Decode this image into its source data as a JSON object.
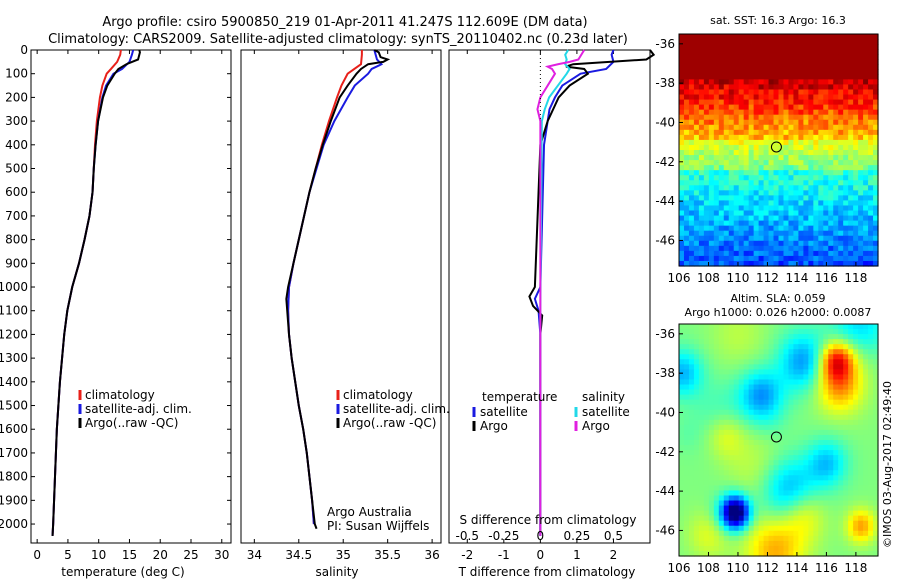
{
  "title": {
    "line1": "Argo profile: csiro 5900850_219 01-Apr-2011 41.247S 112.609E (DM data)",
    "line2": "Climatology: CARS2009. Satellite-adjusted climatology: synTS_20110402.nc (0.23d later)"
  },
  "stamp": "©IMOS 03-Aug-2017 02:49:40",
  "colors": {
    "climatology": "#e8201a",
    "satellite": "#1a1ae0",
    "argo": "#000000",
    "sat_salinity": "#22d8e8",
    "argo_salinity": "#e020e0"
  },
  "chart_data": [
    {
      "type": "line",
      "panel": "temperature",
      "xlabel": "temperature (deg C)",
      "ylabel": "",
      "xlim": [
        -1,
        31.5
      ],
      "ylim": [
        2080,
        0
      ],
      "xticks": [
        0,
        5,
        10,
        15,
        20,
        25,
        30
      ],
      "yticks": [
        0,
        100,
        200,
        300,
        400,
        500,
        600,
        700,
        800,
        900,
        1000,
        1100,
        1200,
        1300,
        1400,
        1500,
        1600,
        1700,
        1800,
        1900,
        2000
      ],
      "legend": [
        "climatology",
        "satellite-adj. clim.",
        "Argo(..raw -QC)"
      ],
      "legend_position": "lower-left",
      "series": [
        {
          "name": "climatology",
          "color_key": "climatology",
          "depth": [
            0,
            20,
            50,
            80,
            100,
            150,
            200,
            300,
            400,
            500,
            600,
            700,
            800,
            900,
            1000,
            1100,
            1200,
            1400,
            1600,
            1800,
            2000,
            2050
          ],
          "values": [
            13.6,
            13.5,
            13.0,
            12.0,
            11.3,
            10.6,
            10.2,
            9.7,
            9.4,
            9.2,
            9.0,
            8.5,
            7.7,
            6.8,
            5.7,
            4.9,
            4.4,
            3.7,
            3.2,
            2.9,
            2.6,
            2.5
          ]
        },
        {
          "name": "satellite-adj. clim.",
          "color_key": "satellite",
          "depth": [
            0,
            20,
            50,
            80,
            100,
            150,
            200,
            300,
            400,
            500,
            600,
            700,
            800,
            900,
            1000,
            1100,
            1200,
            1400,
            1600,
            1800,
            2000,
            2050
          ],
          "values": [
            15.6,
            15.4,
            15.0,
            13.8,
            12.4,
            11.2,
            10.6,
            9.9,
            9.5,
            9.2,
            9.0,
            8.5,
            7.7,
            6.8,
            5.7,
            4.9,
            4.4,
            3.7,
            3.2,
            2.9,
            2.6,
            2.5
          ]
        },
        {
          "name": "Argo(..raw -QC)",
          "color_key": "argo",
          "depth": [
            0,
            10,
            20,
            40,
            60,
            80,
            100,
            150,
            200,
            300,
            400,
            500,
            600,
            700,
            800,
            900,
            1000,
            1100,
            1200,
            1400,
            1600,
            1800,
            2000,
            2050
          ],
          "values": [
            16.6,
            16.7,
            16.6,
            16.4,
            14.5,
            13.2,
            12.6,
            11.4,
            10.7,
            9.9,
            9.5,
            9.2,
            9.0,
            8.5,
            7.7,
            6.8,
            5.7,
            4.9,
            4.4,
            3.7,
            3.2,
            2.9,
            2.6,
            2.5
          ]
        }
      ]
    },
    {
      "type": "line",
      "panel": "salinity",
      "xlabel": "salinity",
      "xlim": [
        33.85,
        36.1
      ],
      "ylim": [
        2080,
        0
      ],
      "xticks": [
        34,
        34.5,
        35,
        35.5,
        36
      ],
      "legend": [
        "climatology",
        "satellite-adj. clim.",
        "Argo(..raw -QC)"
      ],
      "legend_position": "lower-right",
      "annotation": [
        "Argo Australia",
        "PI: Susan Wijffels"
      ],
      "series": [
        {
          "name": "climatology",
          "color_key": "climatology",
          "depth": [
            0,
            20,
            60,
            100,
            150,
            200,
            300,
            400,
            500,
            600,
            700,
            800,
            900,
            1000,
            1100,
            1200,
            1300,
            1400,
            1500,
            1600,
            1700,
            1800,
            1900,
            2000
          ],
          "values": [
            35.21,
            35.21,
            35.2,
            35.05,
            34.98,
            34.93,
            34.84,
            34.76,
            34.69,
            34.62,
            34.56,
            34.5,
            34.44,
            34.39,
            34.38,
            34.39,
            34.42,
            34.46,
            34.5,
            34.55,
            34.59,
            34.62,
            34.65,
            34.67
          ]
        },
        {
          "name": "satellite-adj. clim.",
          "color_key": "satellite",
          "depth": [
            0,
            40,
            60,
            80,
            100,
            150,
            200,
            300,
            400,
            500,
            600,
            700,
            800,
            900,
            1000,
            1100,
            1200,
            1300,
            1400,
            1500,
            1600,
            1700,
            1800,
            1900,
            2000
          ],
          "values": [
            35.35,
            35.38,
            35.43,
            35.32,
            35.28,
            35.13,
            35.05,
            34.9,
            34.78,
            34.7,
            34.62,
            34.56,
            34.5,
            34.44,
            34.39,
            34.38,
            34.39,
            34.42,
            34.46,
            34.5,
            34.55,
            34.59,
            34.62,
            34.65,
            34.67
          ]
        },
        {
          "name": "Argo(..raw -QC)",
          "color_key": "argo",
          "depth": [
            0,
            10,
            30,
            40,
            50,
            60,
            80,
            100,
            150,
            200,
            300,
            400,
            500,
            600,
            700,
            800,
            900,
            1000,
            1050,
            1100,
            1200,
            1300,
            1400,
            1500,
            1600,
            1700,
            1800,
            1900,
            2000,
            2020
          ],
          "values": [
            35.35,
            35.4,
            35.42,
            35.5,
            35.45,
            35.28,
            35.2,
            35.15,
            35.05,
            34.96,
            34.86,
            34.77,
            34.69,
            34.62,
            34.56,
            34.5,
            34.44,
            34.38,
            34.36,
            34.37,
            34.39,
            34.42,
            34.46,
            34.5,
            34.55,
            34.59,
            34.62,
            34.65,
            34.68,
            34.7
          ]
        }
      ]
    },
    {
      "type": "line",
      "panel": "difference",
      "xlabel": "T difference from climatology",
      "xlabel_top": "S difference from climatology",
      "xlim": [
        -2.5,
        3.0
      ],
      "ylim": [
        2080,
        0
      ],
      "xticks": [
        -2,
        -1,
        0,
        1,
        2
      ],
      "xticks_top_values": [
        -0.5,
        -0.25,
        0,
        0.25,
        0.5
      ],
      "xticks_top_labels": [
        "-0.5",
        "-0.25",
        "0",
        "0.25",
        "0.5"
      ],
      "legend_temperature": {
        "title": "temperature",
        "items": [
          "satellite",
          "Argo"
        ]
      },
      "legend_salinity": {
        "title": "salinity",
        "items": [
          "satellite",
          "Argo"
        ]
      },
      "series": [
        {
          "name": "satellite",
          "group": "temperature",
          "color_key": "satellite",
          "depth": [
            0,
            20,
            50,
            80,
            100,
            150,
            200,
            250,
            300,
            400,
            1000,
            1050,
            1100,
            1200,
            1300,
            2050
          ],
          "values": [
            2.0,
            1.95,
            2.0,
            1.8,
            1.1,
            0.6,
            0.4,
            0.25,
            0.2,
            0.1,
            0.0,
            -0.15,
            -0.05,
            0.0,
            0.0,
            0.0
          ]
        },
        {
          "name": "Argo",
          "group": "temperature",
          "color_key": "argo",
          "depth": [
            0,
            20,
            40,
            60,
            70,
            80,
            100,
            150,
            200,
            300,
            400,
            1000,
            1040,
            1080,
            1120,
            1200,
            1400,
            1600,
            1800,
            2050
          ],
          "values": [
            3.0,
            3.1,
            2.9,
            0.9,
            0.7,
            1.2,
            1.3,
            0.8,
            0.5,
            0.2,
            0.0,
            -0.15,
            -0.3,
            -0.2,
            0.05,
            0.0,
            0.0,
            0.0,
            0.0,
            0.0
          ]
        },
        {
          "name": "satellite",
          "group": "salinity",
          "color_key": "sat_salinity",
          "depth": [
            0,
            20,
            40,
            60,
            80,
            100,
            150,
            200,
            250,
            300,
            1100,
            2050
          ],
          "values": [
            0.19,
            0.17,
            0.18,
            0.17,
            0.2,
            0.18,
            0.12,
            0.06,
            0.03,
            0.01,
            0.0,
            0.0
          ]
        },
        {
          "name": "Argo",
          "group": "salinity",
          "color_key": "argo_salinity",
          "depth": [
            0,
            20,
            40,
            50,
            60,
            70,
            80,
            100,
            150,
            200,
            250,
            300,
            1100,
            2050
          ],
          "values": [
            0.3,
            0.28,
            0.26,
            0.2,
            0.12,
            0.05,
            0.08,
            0.1,
            0.05,
            0.0,
            -0.02,
            0.0,
            0.0,
            0.0
          ]
        }
      ]
    },
    {
      "type": "heatmap",
      "panel": "sst-map",
      "title": "sat. SST: 16.3 Argo: 16.3",
      "xlim": [
        106,
        119.5
      ],
      "ylim": [
        -47.3,
        -35.5
      ],
      "xticks": [
        106,
        108,
        110,
        112,
        114,
        116,
        118
      ],
      "yticks": [
        -36,
        -38,
        -40,
        -42,
        -44,
        -46
      ],
      "marker": {
        "lon": 112.609,
        "lat": -41.247
      }
    },
    {
      "type": "heatmap",
      "panel": "sla-map",
      "title_line1": "Altim. SLA: 0.059",
      "title_line2": "Argo h1000: 0.026 h2000: 0.0087",
      "xlim": [
        106,
        119.5
      ],
      "ylim": [
        -47.3,
        -35.5
      ],
      "xticks": [
        106,
        108,
        110,
        112,
        114,
        116,
        118
      ],
      "yticks": [
        -36,
        -38,
        -40,
        -42,
        -44,
        -46
      ],
      "marker": {
        "lon": 112.609,
        "lat": -41.247
      }
    }
  ]
}
